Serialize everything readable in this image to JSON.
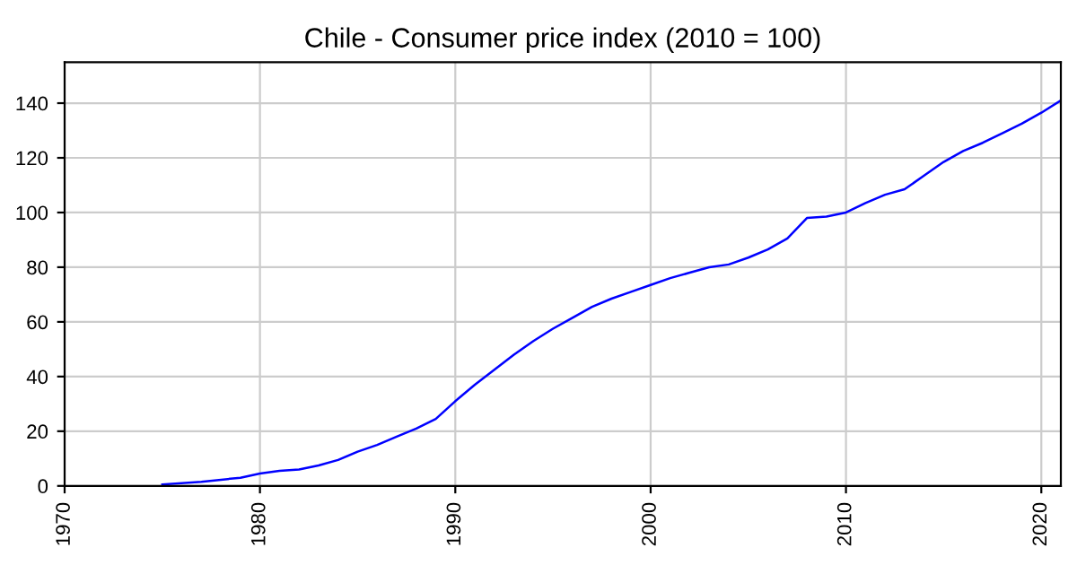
{
  "chart_data": {
    "type": "line",
    "title": "Chile - Consumer price index (2010 = 100)",
    "x": [
      1975,
      1977,
      1979,
      1980,
      1981,
      1982,
      1983,
      1984,
      1985,
      1986,
      1987,
      1988,
      1989,
      1990,
      1991,
      1992,
      1993,
      1994,
      1995,
      1996,
      1997,
      1998,
      1999,
      2000,
      2001,
      2002,
      2003,
      2004,
      2005,
      2006,
      2007,
      2008,
      2009,
      2010,
      2011,
      2012,
      2013,
      2014,
      2015,
      2016,
      2017,
      2018,
      2019,
      2020,
      2021
    ],
    "series": [
      {
        "color": "#0000ff",
        "values": [
          0.5,
          1.5,
          3,
          4.5,
          5.5,
          6,
          7.5,
          9.5,
          12.5,
          15,
          18,
          21,
          24.5,
          31,
          37,
          42.5,
          48,
          53,
          57.5,
          61.5,
          65.5,
          68.5,
          71,
          73.5,
          76,
          78,
          80,
          81,
          83.5,
          86.5,
          90.5,
          98,
          98.5,
          100,
          103.5,
          106.5,
          108.5,
          113.5,
          118.5,
          122.5,
          125.5,
          129,
          132.5,
          136.5,
          141
        ]
      }
    ],
    "xlim": [
      1970,
      2021
    ],
    "ylim": [
      0,
      155
    ],
    "xticks": [
      1970,
      1980,
      1990,
      2000,
      2010,
      2020
    ],
    "yticks": [
      0,
      20,
      40,
      60,
      80,
      100,
      120,
      140
    ],
    "grid": true,
    "legend": false,
    "marker": "none",
    "line_style": "solid"
  }
}
